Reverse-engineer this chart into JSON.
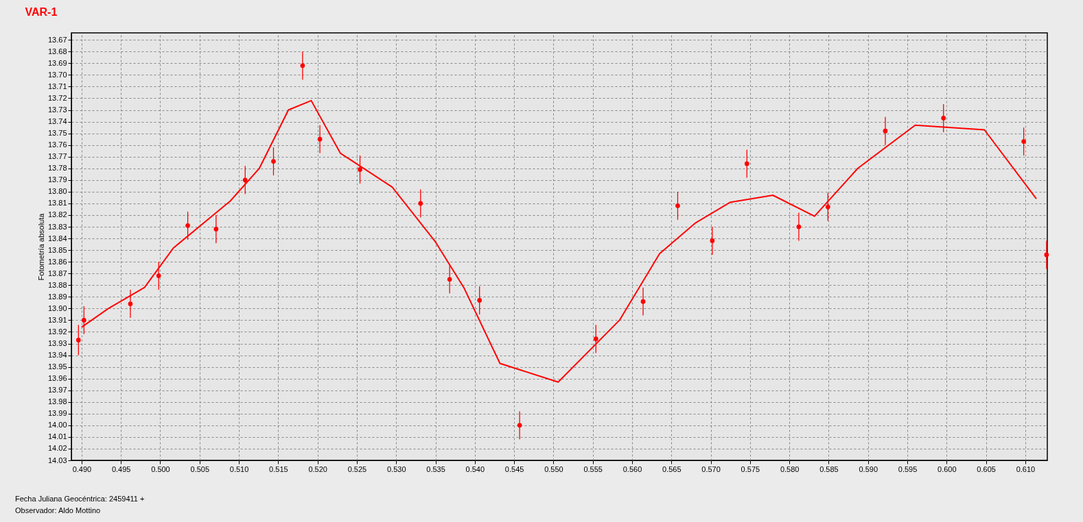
{
  "chart_data": {
    "type": "scatter",
    "title": "VAR-1",
    "ylabel": "Fotometría absoluta",
    "annotations": [
      "Fecha Juliana Geocéntrica: 2459411 +",
      "Observador: Aldo Mottino"
    ],
    "xlim": [
      0.4887,
      0.6128
    ],
    "ylim": [
      14.03,
      13.664
    ],
    "xticks": [
      {
        "value": 0.49,
        "label": "0.490"
      },
      0.495,
      {
        "value": 0.5,
        "label": "0.500"
      },
      0.505,
      {
        "value": 0.51,
        "label": "0.510"
      },
      0.515,
      {
        "value": 0.52,
        "label": "0.520"
      },
      0.525,
      {
        "value": 0.53,
        "label": "0.530"
      },
      0.535,
      {
        "value": 0.54,
        "label": "0.540"
      },
      0.545,
      {
        "value": 0.55,
        "label": "0.550"
      },
      0.555,
      {
        "value": 0.56,
        "label": "0.560"
      },
      0.565,
      {
        "value": 0.57,
        "label": "0.570"
      },
      0.575,
      {
        "value": 0.58,
        "label": "0.580"
      },
      0.585,
      {
        "value": 0.59,
        "label": "0.590"
      },
      0.595,
      {
        "value": 0.6,
        "label": "0.600"
      },
      0.605,
      {
        "value": 0.61,
        "label": "0.610"
      }
    ],
    "yticks": [
      13.67,
      13.68,
      13.69,
      {
        "value": 13.7,
        "label": "13.70"
      },
      13.71,
      13.72,
      13.73,
      13.74,
      13.75,
      13.76,
      13.77,
      13.78,
      13.79,
      {
        "value": 13.8,
        "label": "13.80"
      },
      13.81,
      13.82,
      13.83,
      13.84,
      13.85,
      13.86,
      13.87,
      13.88,
      13.89,
      {
        "value": 13.9,
        "label": "13.90"
      },
      13.91,
      13.92,
      13.93,
      13.94,
      13.95,
      13.96,
      13.97,
      13.98,
      13.99,
      {
        "value": 14,
        "label": "14.00"
      },
      14.01,
      14.02,
      14.03
    ],
    "grid": true,
    "series": [
      {
        "type": "scatter",
        "color": "#ff0000",
        "marker": "circle",
        "x": [
          0.4896,
          0.4903,
          0.4962,
          0.4998,
          0.5035,
          0.5071,
          0.5108,
          0.5144,
          0.5181,
          0.5203,
          0.5254,
          0.5331,
          0.5368,
          0.5406,
          0.5457,
          0.5554,
          0.5614,
          0.5658,
          0.5702,
          0.5746,
          0.5812,
          0.5849,
          0.5922,
          0.5996,
          0.6098,
          0.6127
        ],
        "values": [
          13.927,
          13.91,
          13.896,
          13.872,
          13.829,
          13.832,
          13.79,
          13.774,
          13.692,
          13.755,
          13.781,
          13.81,
          13.875,
          13.893,
          14.0,
          13.926,
          13.894,
          13.812,
          13.842,
          13.776,
          13.83,
          13.813,
          13.748,
          13.737,
          13.757,
          13.854
        ],
        "errors": [
          0.013,
          0.012,
          0.012,
          0.012,
          0.012,
          0.012,
          0.012,
          0.012,
          0.012,
          0.012,
          0.012,
          0.012,
          0.012,
          0.012,
          0.012,
          0.012,
          0.012,
          0.012,
          0.012,
          0.012,
          0.012,
          0.012,
          0.012,
          0.012,
          0.012,
          0.012
        ]
      },
      {
        "type": "line",
        "color": "#ff0000",
        "line_style": "solid",
        "x": [
          0.49,
          0.4934,
          0.498,
          0.5017,
          0.5089,
          0.5126,
          0.5163,
          0.5192,
          0.5229,
          0.5295,
          0.535,
          0.5386,
          0.5432,
          0.5506,
          0.5584,
          0.5635,
          0.568,
          0.5725,
          0.5779,
          0.5832,
          0.5887,
          0.596,
          0.6048,
          0.6114
        ],
        "values": [
          13.916,
          13.9,
          13.882,
          13.848,
          13.808,
          13.78,
          13.73,
          13.722,
          13.767,
          13.796,
          13.843,
          13.882,
          13.947,
          13.963,
          13.91,
          13.853,
          13.827,
          13.809,
          13.803,
          13.821,
          13.78,
          13.743,
          13.747,
          13.806
        ]
      }
    ]
  }
}
